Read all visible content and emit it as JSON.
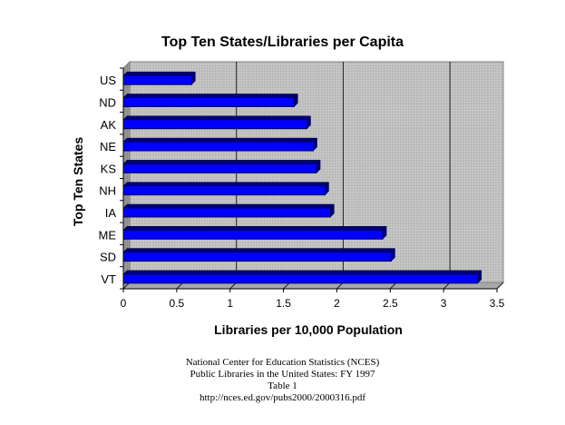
{
  "chart_data": {
    "type": "bar",
    "orientation": "horizontal",
    "title": "Top Ten States/Libraries per Capita",
    "xlabel": "Libraries per 10,000 Population",
    "ylabel": "Top Ten States",
    "categories": [
      "US",
      "ND",
      "AK",
      "NE",
      "KS",
      "NH",
      "IA",
      "ME",
      "SD",
      "VT"
    ],
    "values": [
      0.64,
      1.6,
      1.72,
      1.78,
      1.81,
      1.89,
      1.94,
      2.43,
      2.51,
      3.32
    ],
    "xlim": [
      0,
      3.5
    ],
    "xticks": [
      "0",
      "0.5",
      "1",
      "1.5",
      "2",
      "2.5",
      "3",
      "3.5"
    ],
    "grid": "vertical major gridlines at 1, 2, 3",
    "legend": "none",
    "style": "3D bars",
    "bar_color": "#0000ff",
    "wall_color": "#c0c0c0"
  },
  "source": {
    "lines": [
      "National Center for Education Statistics (NCES)",
      "Public Libraries in the United States: FY 1997",
      "Table 1",
      "http://nces.ed.gov/pubs2000/2000316.pdf"
    ]
  }
}
